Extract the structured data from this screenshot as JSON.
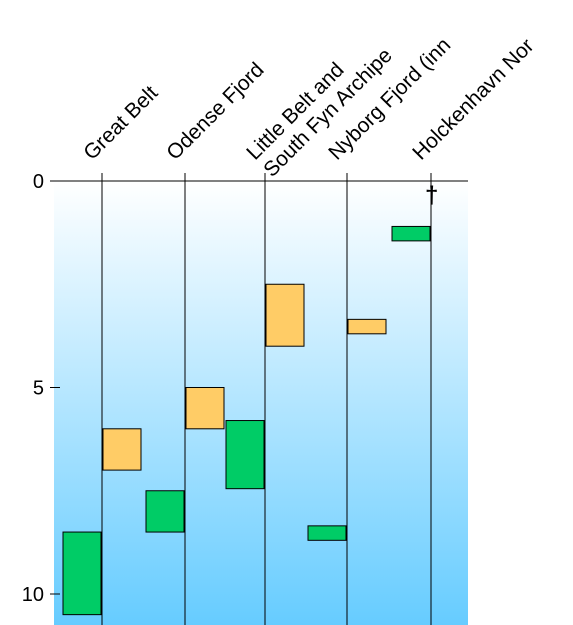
{
  "chart_data": {
    "type": "range-bar",
    "title": "",
    "xlabel": "",
    "ylabel": "",
    "y_axis": {
      "min": 0,
      "max": 11,
      "inverted": true,
      "ticks": [
        0,
        5,
        10
      ]
    },
    "categories": [
      "Great Belt",
      "Odense Fjord",
      "Little Belt and\nSouth Fyn Archipe",
      "Nyborg Fjord (inn",
      "Holckenhavn Nor"
    ],
    "category_labels": [
      {
        "lines": [
          "Great Belt"
        ]
      },
      {
        "lines": [
          "Odense Fjord"
        ]
      },
      {
        "lines": [
          "Little Belt and",
          "South Fyn Archipe"
        ]
      },
      {
        "lines": [
          "Nyborg Fjord (inn"
        ]
      },
      {
        "lines": [
          "Holckenhavn Nor"
        ]
      }
    ],
    "colors": {
      "green": "#00cc66",
      "orange": "#ffcc66",
      "bg_top": "#ffffff",
      "bg_bottom": "#66ccff"
    },
    "ranges": [
      {
        "category": 0,
        "side": "left",
        "color": "green",
        "low": 8.5,
        "high": 10.5
      },
      {
        "category": 0,
        "side": "right",
        "color": "orange",
        "low": 6.0,
        "high": 7.0
      },
      {
        "category": 1,
        "side": "left",
        "color": "green",
        "low": 7.5,
        "high": 8.5
      },
      {
        "category": 1,
        "side": "right",
        "color": "orange",
        "low": 5.0,
        "high": 6.0
      },
      {
        "category": 2,
        "side": "left",
        "color": "green",
        "low": 5.8,
        "high": 7.45
      },
      {
        "category": 2,
        "side": "right",
        "color": "orange",
        "low": 2.5,
        "high": 4.0
      },
      {
        "category": 3,
        "side": "left",
        "color": "green",
        "low": 8.35,
        "high": 8.7
      },
      {
        "category": 3,
        "side": "right",
        "color": "orange",
        "low": 3.35,
        "high": 3.7
      },
      {
        "category": 4,
        "side": "left",
        "color": "green",
        "low": 1.1,
        "high": 1.45
      }
    ],
    "markers": [
      {
        "category": 4,
        "symbol": "†"
      }
    ]
  }
}
